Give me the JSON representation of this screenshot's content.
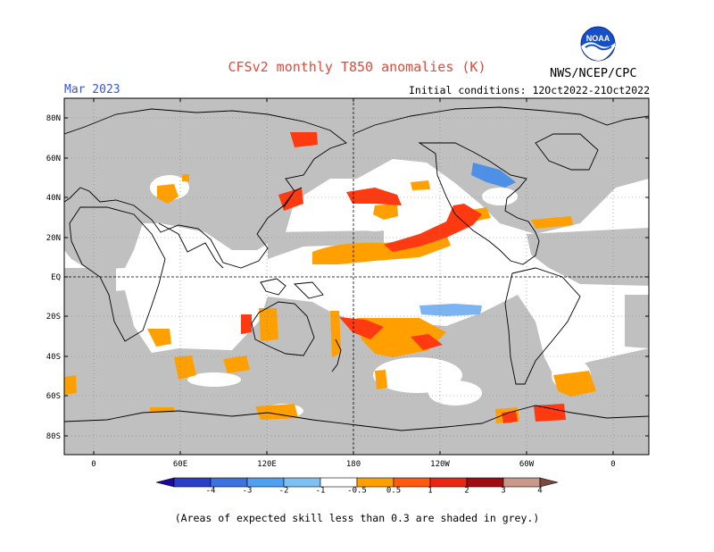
{
  "header": {
    "title": "CFSv2 monthly T850 anomalies (K)",
    "agency": "NWS/NCEP/CPC",
    "logo_text": "NOAA",
    "month": "Mar 2023",
    "initial_conditions": "Initial conditions: 12Oct2022-21Oct2022"
  },
  "axes": {
    "lat_labels": [
      "80N",
      "60N",
      "40N",
      "20N",
      "EQ",
      "20S",
      "40S",
      "60S",
      "80S"
    ],
    "lon_labels": [
      "0",
      "60E",
      "120E",
      "180",
      "120W",
      "60W",
      "0"
    ]
  },
  "colorbar": {
    "labels": [
      "-4",
      "-3",
      "-2",
      "-1",
      "-0.5",
      "0.5",
      "1",
      "2",
      "3",
      "4"
    ],
    "colors": [
      "#1a0aa0",
      "#2a3fc8",
      "#3a73e0",
      "#4ea0f0",
      "#7cc0f4",
      "#ffffff",
      "#ffa000",
      "#ff5a10",
      "#e82810",
      "#a00c10",
      "#c8988a",
      "#7a4a3e"
    ]
  },
  "map": {
    "grey_mask_color": "#c0c0c0",
    "coast_color": "#000000"
  },
  "footnote": "(Areas of expected skill less than 0.3 are shaded in grey.)"
}
